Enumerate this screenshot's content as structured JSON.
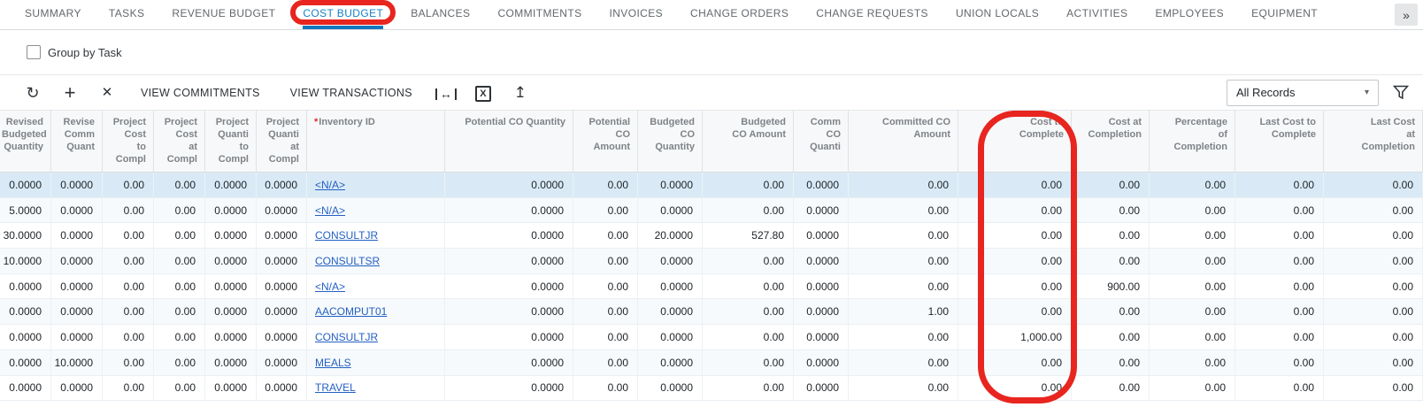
{
  "tab_bar": {
    "tabs": [
      {
        "label": "SUMMARY"
      },
      {
        "label": "TASKS"
      },
      {
        "label": "REVENUE BUDGET"
      },
      {
        "label": "COST BUDGET",
        "active": true,
        "circled": true
      },
      {
        "label": "BALANCES"
      },
      {
        "label": "COMMITMENTS"
      },
      {
        "label": "INVOICES"
      },
      {
        "label": "CHANGE ORDERS"
      },
      {
        "label": "CHANGE REQUESTS"
      },
      {
        "label": "UNION LOCALS"
      },
      {
        "label": "ACTIVITIES"
      },
      {
        "label": "EMPLOYEES"
      },
      {
        "label": "EQUIPMENT"
      }
    ],
    "overflow_glyph": "»"
  },
  "group_by": {
    "label": "Group by Task",
    "checked": false
  },
  "toolbar": {
    "refresh_glyph": "↻",
    "add_glyph": "+",
    "delete_glyph": "✕",
    "view_commitments": "VIEW COMMITMENTS",
    "view_transactions": "VIEW TRANSACTIONS",
    "fit_glyph": "↔",
    "excel_glyph": "X",
    "upload_glyph": "↥",
    "records_filter": "All Records",
    "caret_glyph": "▾"
  },
  "grid": {
    "columns": [
      {
        "key": "revised-budgeted-quantity",
        "label": "Revised\nBudgeted\nQuantity"
      },
      {
        "key": "revised-comm-quant",
        "label": "Revise\nComm\nQuant"
      },
      {
        "key": "project-cost-to-complete",
        "label": "Project\nCost\nto\nCompl"
      },
      {
        "key": "project-cost-at-completion",
        "label": "Project\nCost\nat\nCompl"
      },
      {
        "key": "project-quantity-to-complete",
        "label": "Project\nQuanti\nto\nCompl"
      },
      {
        "key": "project-quantity-at-completion",
        "label": "Project\nQuanti\nat\nCompl"
      },
      {
        "key": "inventory-id",
        "label": "Inventory ID",
        "required": true,
        "align": "left"
      },
      {
        "key": "potential-co-quantity",
        "label": "Potential CO Quantity"
      },
      {
        "key": "potential-co-amount",
        "label": "Potential\nCO\nAmount"
      },
      {
        "key": "budgeted-co-quantity",
        "label": "Budgeted\nCO\nQuantity"
      },
      {
        "key": "budgeted-co-amount",
        "label": "Budgeted\nCO Amount"
      },
      {
        "key": "comm-co-quantity",
        "label": "Comm\nCO\nQuanti"
      },
      {
        "key": "committed-co-amount",
        "label": "Committed CO\nAmount"
      },
      {
        "key": "cost-to-complete",
        "label": "Cost to\nComplete"
      },
      {
        "key": "cost-at-completion",
        "label": "Cost at\nCompletion"
      },
      {
        "key": "percentage-of-completion",
        "label": "Percentage\nof\nCompletion"
      },
      {
        "key": "last-cost-to-complete",
        "label": "Last Cost to\nComplete"
      },
      {
        "key": "last-cost-at-completion",
        "label": "Last Cost\nat\nCompletion"
      }
    ],
    "rows": [
      {
        "selected": true,
        "cells": [
          "0.0000",
          "0.0000",
          "0.00",
          "0.00",
          "0.0000",
          "0.0000",
          "<N/A>",
          "0.0000",
          "0.00",
          "0.0000",
          "0.00",
          "0.0000",
          "0.00",
          "0.00",
          "0.00",
          "0.00",
          "0.00",
          "0.00"
        ]
      },
      {
        "cells": [
          "5.0000",
          "0.0000",
          "0.00",
          "0.00",
          "0.0000",
          "0.0000",
          "<N/A>",
          "0.0000",
          "0.00",
          "0.0000",
          "0.00",
          "0.0000",
          "0.00",
          "0.00",
          "0.00",
          "0.00",
          "0.00",
          "0.00"
        ]
      },
      {
        "cells": [
          "30.0000",
          "0.0000",
          "0.00",
          "0.00",
          "0.0000",
          "0.0000",
          "CONSULTJR",
          "0.0000",
          "0.00",
          "20.0000",
          "527.80",
          "0.0000",
          "0.00",
          "0.00",
          "0.00",
          "0.00",
          "0.00",
          "0.00"
        ]
      },
      {
        "cells": [
          "10.0000",
          "0.0000",
          "0.00",
          "0.00",
          "0.0000",
          "0.0000",
          "CONSULTSR",
          "0.0000",
          "0.00",
          "0.0000",
          "0.00",
          "0.0000",
          "0.00",
          "0.00",
          "0.00",
          "0.00",
          "0.00",
          "0.00"
        ]
      },
      {
        "cells": [
          "0.0000",
          "0.0000",
          "0.00",
          "0.00",
          "0.0000",
          "0.0000",
          "<N/A>",
          "0.0000",
          "0.00",
          "0.0000",
          "0.00",
          "0.0000",
          "0.00",
          "0.00",
          "900.00",
          "0.00",
          "0.00",
          "0.00"
        ]
      },
      {
        "cells": [
          "0.0000",
          "0.0000",
          "0.00",
          "0.00",
          "0.0000",
          "0.0000",
          "AACOMPUT01",
          "0.0000",
          "0.00",
          "0.0000",
          "0.00",
          "0.0000",
          "1.00",
          "0.00",
          "0.00",
          "0.00",
          "0.00",
          "0.00"
        ]
      },
      {
        "cells": [
          "0.0000",
          "0.0000",
          "0.00",
          "0.00",
          "0.0000",
          "0.0000",
          "CONSULTJR",
          "0.0000",
          "0.00",
          "0.0000",
          "0.00",
          "0.0000",
          "0.00",
          "1,000.00",
          "0.00",
          "0.00",
          "0.00",
          "0.00"
        ]
      },
      {
        "cells": [
          "0.0000",
          "10.0000",
          "0.00",
          "0.00",
          "0.0000",
          "0.0000",
          "MEALS",
          "0.0000",
          "0.00",
          "0.0000",
          "0.00",
          "0.0000",
          "0.00",
          "0.00",
          "0.00",
          "0.00",
          "0.00",
          "0.00"
        ]
      },
      {
        "cells": [
          "0.0000",
          "0.0000",
          "0.00",
          "0.00",
          "0.0000",
          "0.0000",
          "TRAVEL",
          "0.0000",
          "0.00",
          "0.0000",
          "0.00",
          "0.0000",
          "0.00",
          "0.00",
          "0.00",
          "0.00",
          "0.00",
          "0.00"
        ]
      }
    ]
  },
  "annotations": {
    "highlight_color": "#e8251f",
    "circled_tab": "COST BUDGET",
    "circled_column": "Cost to Complete"
  }
}
